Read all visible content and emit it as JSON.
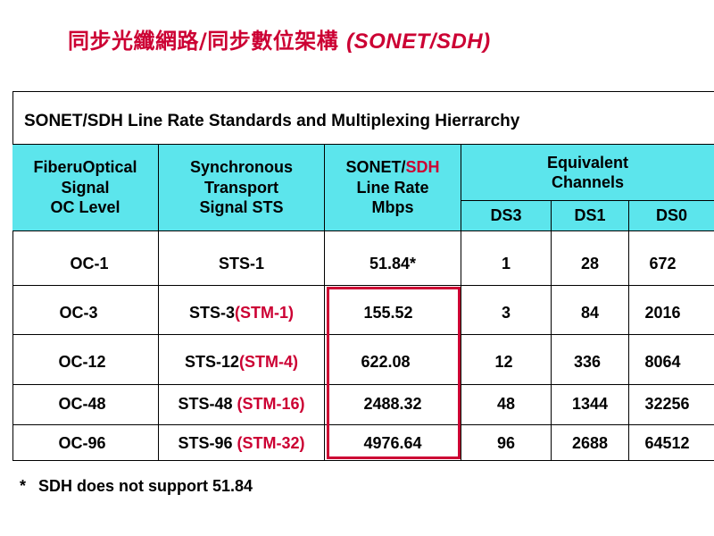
{
  "slide": {
    "title_zh": "同步光纖網路/同步數位架構 ",
    "title_en": "(SONET/SDH)"
  },
  "table": {
    "title": "SONET/SDH Line Rate Standards and Multiplexing Hierrarchy",
    "headers": {
      "oc": [
        "FiberuOptical",
        "Signal",
        "OC Level"
      ],
      "sts": [
        "Synchronous",
        "Transport",
        "Signal STS"
      ],
      "rate_part1": "SONET/",
      "rate_part2": "SDH",
      "rate_rest": [
        "Line Rate",
        "Mbps"
      ],
      "equiv": [
        "Equivalent",
        "Channels"
      ],
      "ds3": "DS3",
      "ds1": "DS1",
      "ds0": "DS0"
    },
    "rows": [
      {
        "oc": "OC-1",
        "sts": "STS-1",
        "stm": "",
        "rate": "51.84*",
        "ds3": "1",
        "ds1": "28",
        "ds0": "672"
      },
      {
        "oc": "OC-3",
        "sts": "STS-3",
        "stm": "(STM-1)",
        "rate": "155.52",
        "ds3": "3",
        "ds1": "84",
        "ds0": "2016"
      },
      {
        "oc": "OC-12",
        "sts": "STS-12",
        "stm": "(STM-4)",
        "rate": "622.08",
        "ds3": "12",
        "ds1": "336",
        "ds0": "8064"
      },
      {
        "oc": "OC-48",
        "sts": "STS-48 ",
        "stm": "(STM-16)",
        "rate": "2488.32",
        "ds3": "48",
        "ds1": "1344",
        "ds0": "32256"
      },
      {
        "oc": "OC-96",
        "sts": "STS-96 ",
        "stm": "(STM-32)",
        "rate": "4976.64",
        "ds3": "96",
        "ds1": "2688",
        "ds0": "64512"
      }
    ]
  },
  "footnote": {
    "star": "*",
    "text": "SDH does not support 51.84"
  }
}
